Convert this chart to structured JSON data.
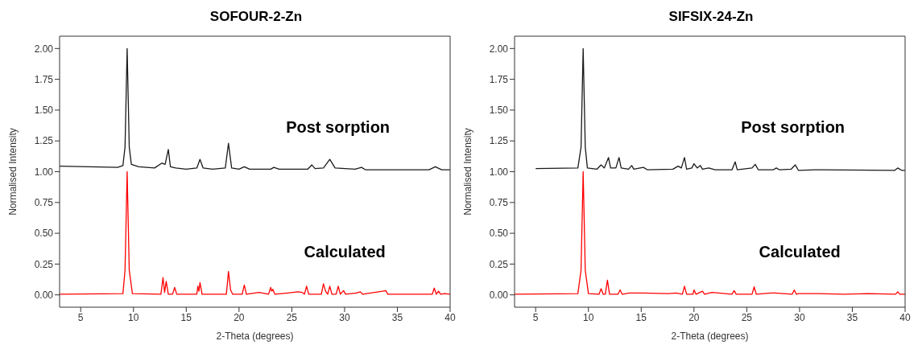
{
  "chart_data": [
    {
      "type": "line",
      "title": "SOFOUR-2-Zn",
      "xlabel": "2-Theta (degrees)",
      "ylabel": "Normalised Intensity",
      "xlim": [
        3,
        40
      ],
      "xticks": [
        5,
        10,
        15,
        20,
        25,
        30,
        35,
        40
      ],
      "ylim": [
        -0.1,
        2.1
      ],
      "yticks": [
        {
          "value": 0,
          "label": "0.00"
        },
        {
          "value": 0.25,
          "label": "0.25"
        },
        {
          "value": 0.5,
          "label": "0.50"
        },
        {
          "value": 0.75,
          "label": "0.75"
        },
        {
          "value": 1,
          "label": "1.00"
        },
        {
          "value": 1.25,
          "label": "1.25"
        },
        {
          "value": 1.5,
          "label": "1.50"
        },
        {
          "value": 1.75,
          "label": "1.75"
        },
        {
          "value": 2,
          "label": "2.00"
        }
      ],
      "marker": "none",
      "line_style": "solid",
      "series": [
        {
          "name": "Post sorption",
          "color": "#1a1a1a",
          "x": [
            3,
            8.5,
            9.0,
            9.2,
            9.4,
            9.6,
            9.8,
            10.5,
            12,
            12.7,
            13.0,
            13.3,
            13.5,
            14,
            15,
            16.0,
            16.3,
            16.6,
            17.5,
            18.7,
            19.0,
            19.3,
            20.0,
            20.5,
            21,
            23,
            23.3,
            23.8,
            26.5,
            26.9,
            27.2,
            28,
            28.6,
            29.1,
            31,
            31.6,
            32,
            38,
            38.6,
            39.2,
            40
          ],
          "values": [
            1.045,
            1.035,
            1.05,
            1.2,
            2.0,
            1.2,
            1.06,
            1.04,
            1.03,
            1.07,
            1.06,
            1.18,
            1.04,
            1.03,
            1.02,
            1.03,
            1.1,
            1.03,
            1.02,
            1.03,
            1.23,
            1.03,
            1.02,
            1.04,
            1.02,
            1.02,
            1.035,
            1.02,
            1.02,
            1.055,
            1.025,
            1.03,
            1.1,
            1.03,
            1.02,
            1.035,
            1.015,
            1.015,
            1.04,
            1.015,
            1.015
          ]
        },
        {
          "name": "Calculated",
          "color": "#ff0000",
          "x": [
            3,
            9.0,
            9.2,
            9.4,
            9.6,
            9.9,
            12.6,
            12.8,
            12.95,
            13.1,
            13.3,
            13.7,
            13.9,
            14.1,
            16,
            16.1,
            16.2,
            16.3,
            16.5,
            18.8,
            19.0,
            19.2,
            19.4,
            20.3,
            20.5,
            20.7,
            21.9,
            22.8,
            23.0,
            23.1,
            23.2,
            23.4,
            24.6,
            25.6,
            26.0,
            26.2,
            26.4,
            26.6,
            27.8,
            28.0,
            28.2,
            28.4,
            28.6,
            28.8,
            29.2,
            29.4,
            29.6,
            29.9,
            30.1,
            31.1,
            31.5,
            31.7,
            33.6,
            33.9,
            34.1,
            38.3,
            38.5,
            38.7,
            38.9,
            39.1,
            39.5,
            40
          ],
          "values": [
            0.005,
            0.01,
            0.2,
            1.0,
            0.2,
            0.01,
            0.005,
            0.14,
            0.02,
            0.11,
            0.005,
            0.005,
            0.06,
            0.005,
            0.005,
            0.07,
            0.03,
            0.1,
            0.005,
            0.005,
            0.19,
            0.04,
            0.005,
            0.005,
            0.08,
            0.005,
            0.02,
            0.005,
            0.06,
            0.03,
            0.045,
            0.005,
            0.015,
            0.025,
            0.02,
            0.005,
            0.07,
            0.005,
            0.005,
            0.09,
            0.03,
            0.005,
            0.07,
            0.005,
            0.005,
            0.07,
            0.005,
            0.035,
            0.005,
            0.015,
            0.025,
            0.005,
            0.03,
            0.035,
            0.005,
            0.005,
            0.055,
            0.005,
            0.03,
            0.005,
            0.01,
            0.005
          ]
        }
      ]
    },
    {
      "type": "line",
      "title": "SIFSIX-24-Zn",
      "xlabel": "2-Theta (degrees)",
      "ylabel": "Normalised Intensity",
      "xlim": [
        3,
        40
      ],
      "xticks": [
        5,
        10,
        15,
        20,
        25,
        30,
        35,
        40
      ],
      "ylim": [
        -0.1,
        2.1
      ],
      "yticks": [
        {
          "value": 0,
          "label": "0.00"
        },
        {
          "value": 0.25,
          "label": "0.25"
        },
        {
          "value": 0.5,
          "label": "0.50"
        },
        {
          "value": 0.75,
          "label": "0.75"
        },
        {
          "value": 1,
          "label": "1.00"
        },
        {
          "value": 1.25,
          "label": "1.25"
        },
        {
          "value": 1.5,
          "label": "1.50"
        },
        {
          "value": 1.75,
          "label": "1.75"
        },
        {
          "value": 2,
          "label": "2.00"
        }
      ],
      "marker": "none",
      "line_style": "solid",
      "series": [
        {
          "name": "Post sorption",
          "color": "#1a1a1a",
          "x": [
            5,
            9.0,
            9.3,
            9.5,
            9.7,
            9.9,
            10.8,
            11.2,
            11.5,
            11.9,
            12.1,
            12.6,
            12.9,
            13.1,
            13.8,
            14.1,
            14.3,
            15.2,
            15.6,
            18,
            18.5,
            18.8,
            19.1,
            19.3,
            19.8,
            20.0,
            20.3,
            20.6,
            20.8,
            21.4,
            22,
            23.6,
            23.9,
            24.1,
            25.5,
            25.8,
            26.1,
            27.5,
            27.8,
            28.1,
            29.2,
            29.6,
            29.9,
            31.5,
            32,
            39,
            39.3,
            39.7,
            40
          ],
          "values": [
            1.025,
            1.03,
            1.2,
            2.0,
            1.2,
            1.03,
            1.02,
            1.055,
            1.03,
            1.115,
            1.03,
            1.03,
            1.115,
            1.03,
            1.02,
            1.05,
            1.02,
            1.035,
            1.015,
            1.02,
            1.045,
            1.03,
            1.115,
            1.02,
            1.03,
            1.065,
            1.03,
            1.05,
            1.02,
            1.03,
            1.015,
            1.015,
            1.08,
            1.015,
            1.03,
            1.06,
            1.015,
            1.015,
            1.03,
            1.015,
            1.02,
            1.055,
            1.01,
            1.015,
            1.015,
            1.01,
            1.03,
            1.01,
            1.01
          ]
        },
        {
          "name": "Calculated",
          "color": "#ff0000",
          "x": [
            3,
            9.0,
            9.3,
            9.5,
            9.7,
            10.0,
            11.0,
            11.2,
            11.4,
            11.6,
            11.8,
            12.0,
            12.8,
            13.0,
            13.2,
            13.9,
            15.1,
            17.6,
            18.3,
            18.9,
            19.1,
            19.3,
            19.9,
            20.0,
            20.2,
            20.8,
            21.0,
            21.7,
            23.6,
            23.8,
            24.0,
            25.5,
            25.7,
            25.9,
            27.3,
            27.7,
            29.3,
            29.5,
            29.7,
            29.9,
            31.7,
            34.2,
            36.5,
            39.1,
            39.3,
            39.5,
            40
          ],
          "values": [
            0.005,
            0.01,
            0.2,
            1.0,
            0.2,
            0.01,
            0.005,
            0.05,
            0.005,
            0.005,
            0.12,
            0.005,
            0.005,
            0.04,
            0.005,
            0.015,
            0.015,
            0.01,
            0.015,
            0.005,
            0.07,
            0.005,
            0.005,
            0.04,
            0.005,
            0.03,
            0.005,
            0.02,
            0.005,
            0.035,
            0.005,
            0.005,
            0.065,
            0.005,
            0.015,
            0.015,
            0.005,
            0.04,
            0.005,
            0.01,
            0.01,
            0.005,
            0.01,
            0.005,
            0.025,
            0.005,
            0.005
          ]
        }
      ]
    }
  ]
}
